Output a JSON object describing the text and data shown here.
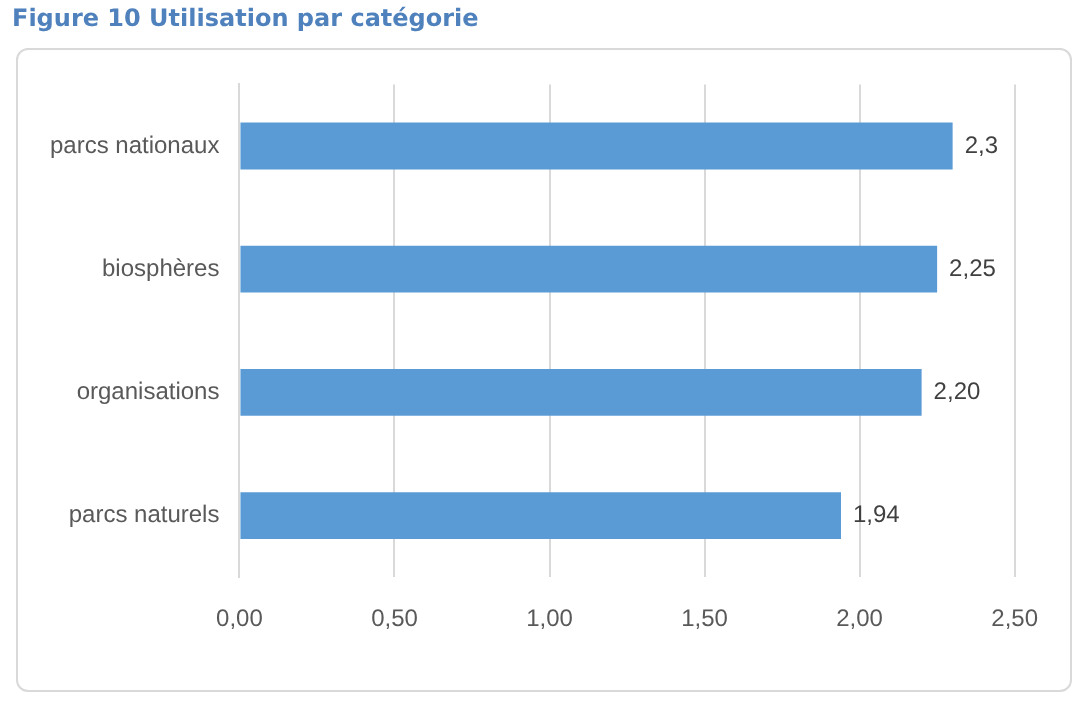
{
  "chart_data": {
    "type": "bar",
    "title": "Figure 10 Utilisation par catégorie",
    "orientation": "horizontal",
    "categories": [
      "parcs nationaux",
      "biosphères",
      "organisations",
      "parcs naturels"
    ],
    "values": [
      2.3,
      2.25,
      2.2,
      1.94
    ],
    "value_labels": [
      "2,3",
      "2,25",
      "2,20",
      "1,94"
    ],
    "color": "#5b9bd5",
    "xlim": [
      0,
      2.5
    ],
    "xticks": [
      {
        "value": 0,
        "label": "0,00"
      },
      {
        "value": 0.5,
        "label": "0,50"
      },
      {
        "value": 1,
        "label": "1,00"
      },
      {
        "value": 1.5,
        "label": "1,50"
      },
      {
        "value": 2,
        "label": "2,00"
      },
      {
        "value": 2.5,
        "label": "2,50"
      }
    ],
    "grid": "x",
    "legend": false
  }
}
